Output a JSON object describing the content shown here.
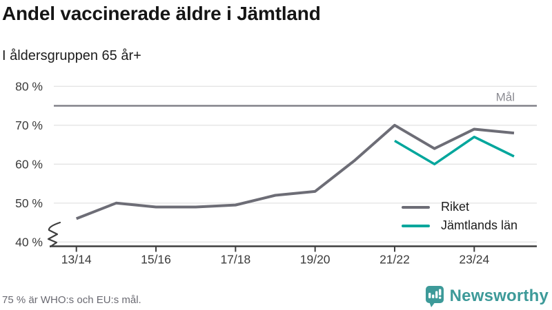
{
  "header": {
    "title": "Andel vaccinerade äldre i Jämtland",
    "subtitle": "I åldersgruppen 65 år+"
  },
  "footer": {
    "note": "75 % är WHO:s och EU:s mål.",
    "brand": "Newsworthy"
  },
  "legend": {
    "items": [
      {
        "label": "Riket",
        "color_key": "riket_line"
      },
      {
        "label": "Jämtlands län",
        "color_key": "jamtland_line"
      }
    ]
  },
  "colors": {
    "riket_line": "#6d6d76",
    "jamtland_line": "#00a69c",
    "target_line": "#7b7b83",
    "grid_line": "#e4e4e4",
    "axis_line": "#3e3e3e",
    "axis_text": "#3b3b3b",
    "muted_text": "#8b8b92",
    "footer_text": "#6a6a72",
    "brand_teal": "#3d9a99"
  },
  "chart_data": {
    "type": "line",
    "title": "Andel vaccinerade äldre i Jämtland",
    "subtitle": "I åldersgruppen 65 år+",
    "x": [
      "13/14",
      "14/15",
      "15/16",
      "16/17",
      "17/18",
      "18/19",
      "19/20",
      "20/21",
      "21/22",
      "22/23",
      "23/24",
      "24/25"
    ],
    "x_ticks": [
      {
        "index": 0,
        "label": "13/14"
      },
      {
        "index": 2,
        "label": "15/16"
      },
      {
        "index": 4,
        "label": "17/18"
      },
      {
        "index": 6,
        "label": "19/20"
      },
      {
        "index": 8,
        "label": "21/22"
      },
      {
        "index": 10,
        "label": "23/24"
      }
    ],
    "series": [
      {
        "name": "Riket",
        "color_key": "riket_line",
        "values": [
          46,
          50,
          49,
          49,
          49.5,
          52,
          53,
          61,
          70,
          64,
          69,
          68
        ]
      },
      {
        "name": "Jämtlands län",
        "color_key": "jamtland_line",
        "values": [
          null,
          null,
          null,
          null,
          null,
          null,
          null,
          null,
          66,
          60,
          67,
          62
        ]
      }
    ],
    "target": {
      "value": 75,
      "label": "Mål"
    },
    "y_ticks": [
      40,
      50,
      60,
      70,
      80
    ],
    "y_tick_labels": [
      "40 %",
      "50 %",
      "60 %",
      "70 %",
      "80 %"
    ],
    "ylim": [
      40,
      80
    ],
    "axis_break": true,
    "grid": true,
    "legend_position": "inside-lower-right"
  }
}
